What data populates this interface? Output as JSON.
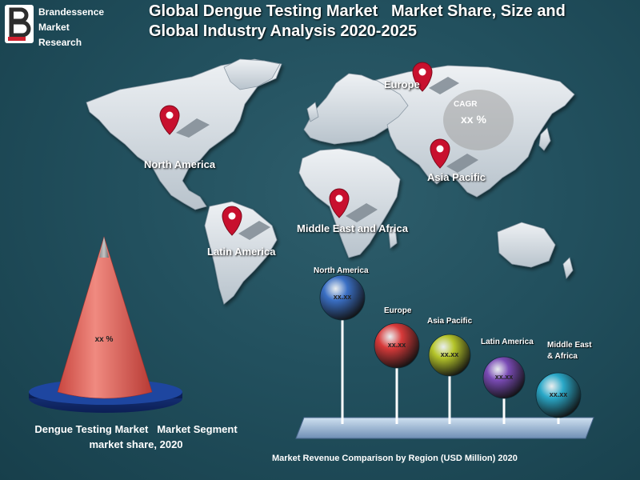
{
  "brand": {
    "lines": [
      "Brandessence",
      "Market",
      "Research"
    ],
    "mark": "B"
  },
  "title": "Global Dengue Testing Market   Market Share, Size and\nGlobal Industry Analysis 2020-2025",
  "map": {
    "regions": [
      {
        "label": "North America",
        "icon": "map-pin-icon"
      },
      {
        "label": "Europe",
        "icon": "map-pin-icon"
      },
      {
        "label": "Asia Pacific",
        "icon": "map-pin-icon"
      },
      {
        "label": "Middle East and Africa",
        "icon": "map-pin-icon"
      },
      {
        "label": "Latin America",
        "icon": "map-pin-icon"
      }
    ],
    "cagr": {
      "label": "CAGR",
      "value": "xx %"
    },
    "pin_color": "#c8102e"
  },
  "segment": {
    "value": "xx %",
    "caption": "Dengue Testing Market   Market Segment\nmarket share, 2020",
    "cone_color": "#e8685f"
  },
  "chart_data": {
    "type": "bar",
    "title": "Market Revenue Comparison by Region (USD Million) 2020",
    "categories": [
      "North America",
      "Europe",
      "Asia Pacific",
      "Latin America",
      "Middle East\n& Africa"
    ],
    "series": [
      {
        "values": [
          "xx.xx",
          "xx.xx",
          "xx.xx",
          "xx.xx",
          "xx.xx"
        ]
      }
    ],
    "colors": [
      "#3a6fc4",
      "#d83a3a",
      "#b5c52a",
      "#7a4bb5",
      "#2aa8c8"
    ]
  }
}
